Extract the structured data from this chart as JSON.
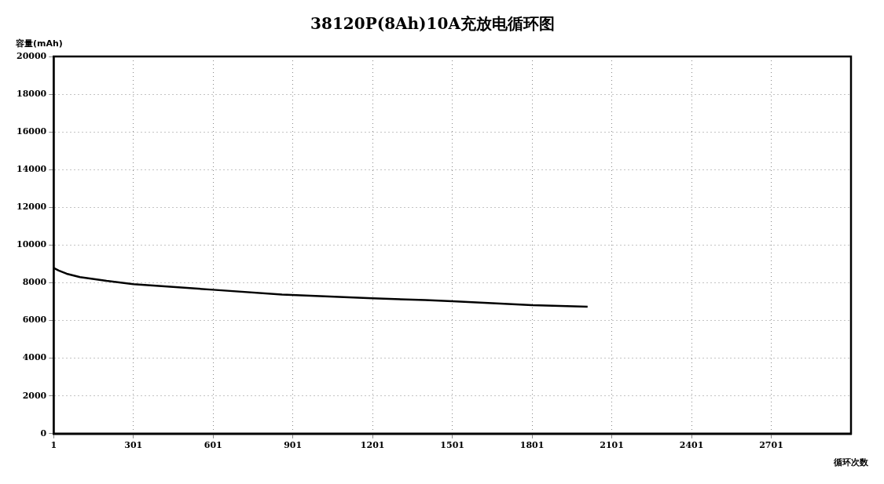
{
  "chart_data": {
    "type": "line",
    "title": "38120P(8Ah)10A充放电循环图",
    "ylabel": "容量(mAh)",
    "xlabel": "循环次数",
    "x": [
      1,
      20,
      50,
      100,
      200,
      301,
      450,
      601,
      860,
      1201,
      1399,
      1501,
      1801,
      2010
    ],
    "series": [
      {
        "color": "#000000",
        "values": [
          8790,
          8650,
          8480,
          8300,
          8100,
          7930,
          7780,
          7630,
          7380,
          7180,
          7080,
          7020,
          6810,
          6730
        ]
      }
    ],
    "xlim": [
      1,
      3001
    ],
    "xticks": [
      1,
      301,
      601,
      901,
      1201,
      1501,
      1801,
      2101,
      2401,
      2701
    ],
    "ylim": [
      0,
      20000
    ],
    "yticks": [
      0,
      2000,
      4000,
      6000,
      8000,
      10000,
      12000,
      14000,
      16000,
      18000,
      20000
    ],
    "grid": true,
    "legend": false,
    "marker": "none",
    "line_style": "solid"
  }
}
